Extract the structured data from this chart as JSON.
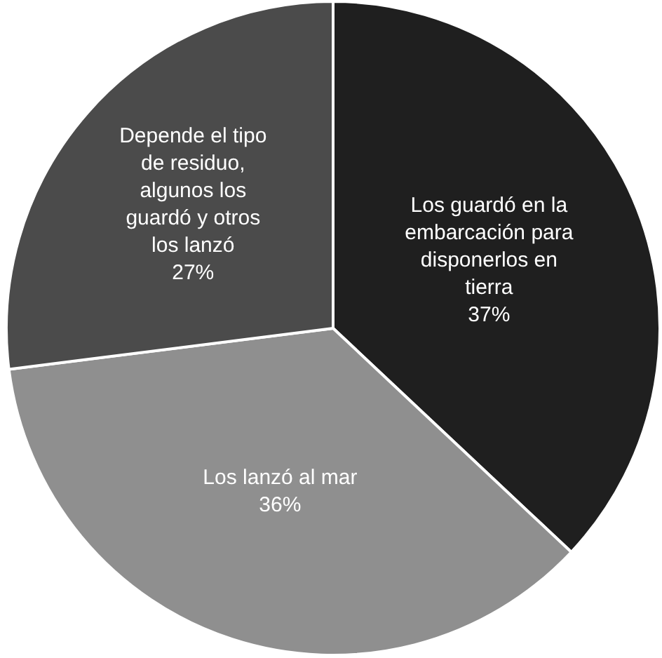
{
  "chart_data": {
    "type": "pie",
    "categories": [
      "Los guardó en la embarcación para disponerlos en tierra",
      "Los lanzó al mar",
      "Depende el tipo de residuo, algunos los guardó y otros los lanzó"
    ],
    "values": [
      37,
      36,
      27
    ],
    "value_labels": [
      "37%",
      "36%",
      "27%"
    ],
    "colors": [
      "#1f1f1f",
      "#8f8f8f",
      "#4b4b4b"
    ],
    "legend": false
  }
}
